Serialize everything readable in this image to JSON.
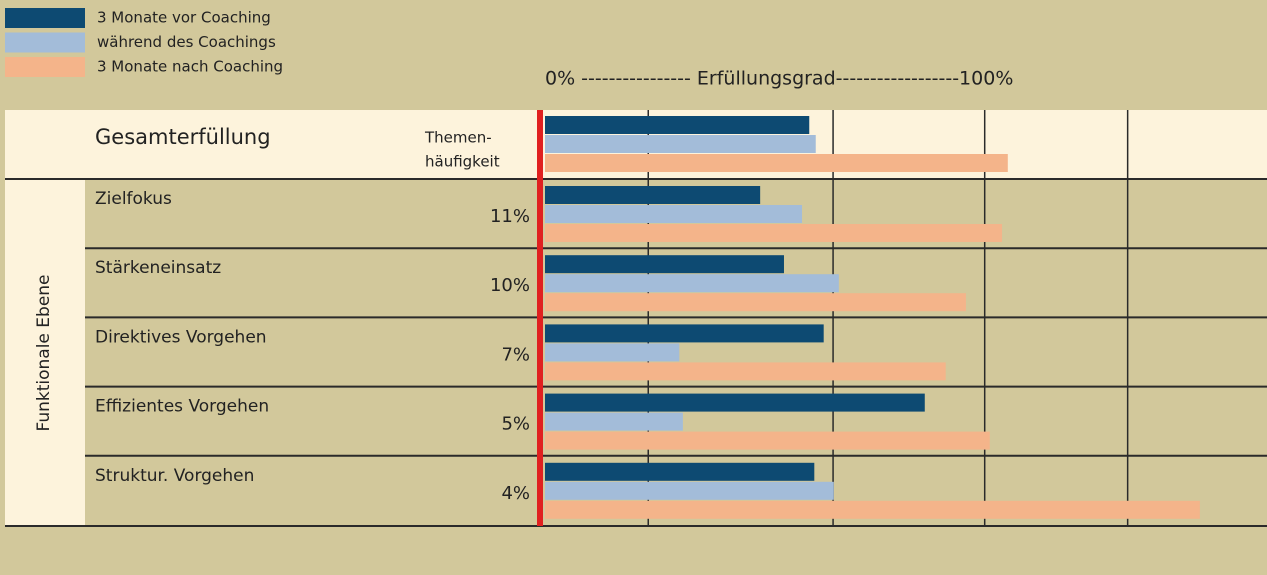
{
  "chart_data": {
    "type": "bar",
    "orientation": "horizontal",
    "title": "0% ---------------- Erfüllungsgrad------------------100%",
    "group_label": "Funktionale Ebene",
    "frequency_header": [
      "Themen-",
      "häufigkeit"
    ],
    "categories": [
      "Gesamterfüllung",
      "Zielfokus",
      "Stärkeneinsatz",
      "Direktives Vorgehen",
      "Effizientes Vorgehen",
      "Struktur. Vorgehen"
    ],
    "frequency": {
      "values": [
        null,
        11,
        10,
        7,
        5,
        4
      ],
      "value_labels": [
        null,
        "11%",
        "10%",
        "7%",
        "5%",
        "4%"
      ]
    },
    "series": [
      {
        "name": "3 Monate vor Coaching",
        "color": "#0d4a72",
        "values": [
          36.6,
          29.8,
          33.1,
          38.6,
          52.6,
          37.3
        ]
      },
      {
        "name": "während des Coachings",
        "color": "#a3bcd9",
        "values": [
          37.5,
          35.6,
          40.7,
          18.6,
          19.1,
          40.0
        ]
      },
      {
        "name": "3 Monate nach Coaching",
        "color": "#f4b48a",
        "values": [
          64.1,
          63.3,
          58.3,
          55.5,
          61.6,
          90.7
        ]
      }
    ],
    "xlim": [
      0,
      100
    ],
    "xgrid": [
      14.3,
      39.9,
      60.9,
      80.7
    ],
    "baseline_color": "#e02020"
  }
}
